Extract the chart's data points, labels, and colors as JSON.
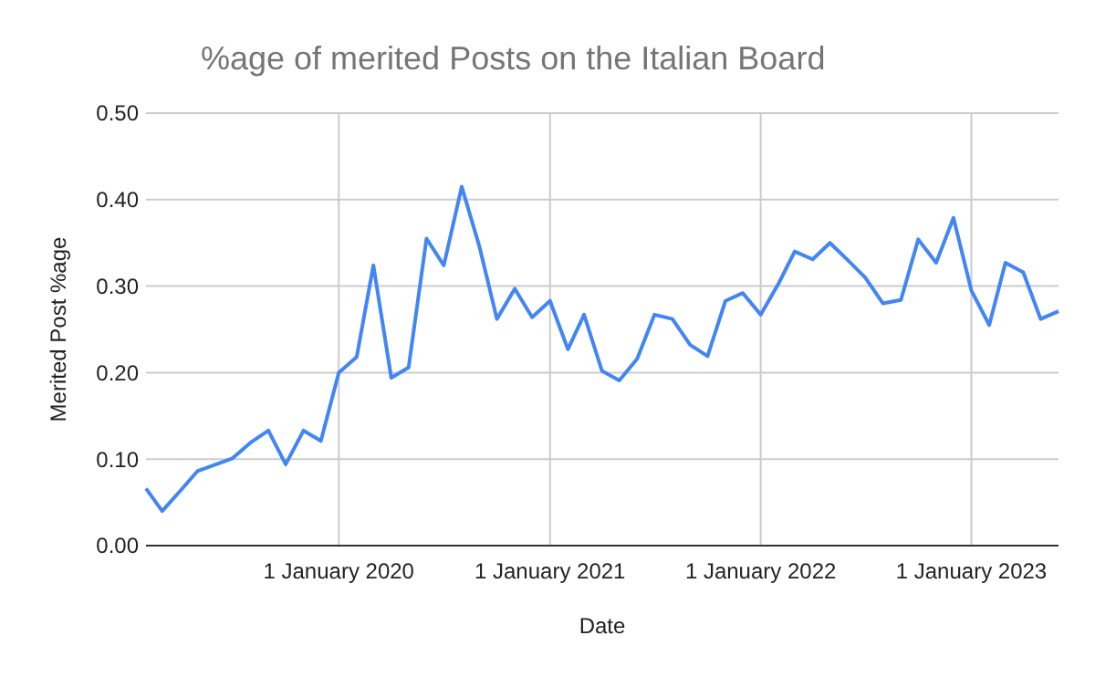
{
  "chart_data": {
    "type": "line",
    "title": "%age of merited Posts on the Italian Board",
    "xlabel": "Date",
    "ylabel": "Merited Post %age",
    "x": [
      "2019-02-01",
      "2019-03-01",
      "2019-04-01",
      "2019-05-01",
      "2019-07-01",
      "2019-08-01",
      "2019-09-01",
      "2019-10-01",
      "2019-11-01",
      "2019-12-01",
      "2020-01-01",
      "2020-02-01",
      "2020-03-01",
      "2020-04-01",
      "2020-05-01",
      "2020-06-01",
      "2020-07-01",
      "2020-08-01",
      "2020-09-01",
      "2020-10-01",
      "2020-11-01",
      "2020-12-01",
      "2021-01-01",
      "2021-02-01",
      "2021-03-01",
      "2021-04-01",
      "2021-05-01",
      "2021-06-01",
      "2021-07-01",
      "2021-08-01",
      "2021-09-01",
      "2021-10-01",
      "2021-11-01",
      "2021-12-01",
      "2022-01-01",
      "2022-02-01",
      "2022-03-01",
      "2022-04-01",
      "2022-05-01",
      "2022-06-01",
      "2022-07-01",
      "2022-08-01",
      "2022-09-01",
      "2022-10-01",
      "2022-11-01",
      "2022-12-01",
      "2023-01-01",
      "2023-02-01",
      "2023-03-01",
      "2023-04-01",
      "2023-05-01",
      "2023-06-01"
    ],
    "series": [
      {
        "color": "#4285f4",
        "values": [
          0.066,
          0.04,
          0.063,
          0.086,
          0.101,
          0.119,
          0.133,
          0.094,
          0.133,
          0.121,
          0.2,
          0.218,
          0.324,
          0.194,
          0.206,
          0.355,
          0.324,
          0.415,
          0.345,
          0.262,
          0.297,
          0.264,
          0.283,
          0.227,
          0.267,
          0.202,
          0.191,
          0.216,
          0.267,
          0.262,
          0.232,
          0.219,
          0.283,
          0.292,
          0.267,
          0.303,
          0.34,
          0.331,
          0.35,
          0.33,
          0.31,
          0.28,
          0.284,
          0.354,
          0.327,
          0.379,
          0.295,
          0.255,
          0.327,
          0.316,
          0.262,
          0.271
        ]
      }
    ],
    "xlim": [
      "2019-02-01",
      "2023-06-01"
    ],
    "xticks": [
      {
        "value": "2020-01-01",
        "label": "1 January 2020"
      },
      {
        "value": "2021-01-01",
        "label": "1 January 2021"
      },
      {
        "value": "2022-01-01",
        "label": "1 January 2022"
      },
      {
        "value": "2023-01-01",
        "label": "1 January 2023"
      }
    ],
    "ylim": [
      0,
      0.5
    ],
    "yticks": [
      {
        "value": 0,
        "label": "0.00"
      },
      {
        "value": 0.1,
        "label": "0.10"
      },
      {
        "value": 0.2,
        "label": "0.20"
      },
      {
        "value": 0.3,
        "label": "0.30"
      },
      {
        "value": 0.4,
        "label": "0.40"
      },
      {
        "value": 0.5,
        "label": "0.50"
      }
    ],
    "grid": true,
    "marker": "none",
    "line_style": "solid"
  }
}
